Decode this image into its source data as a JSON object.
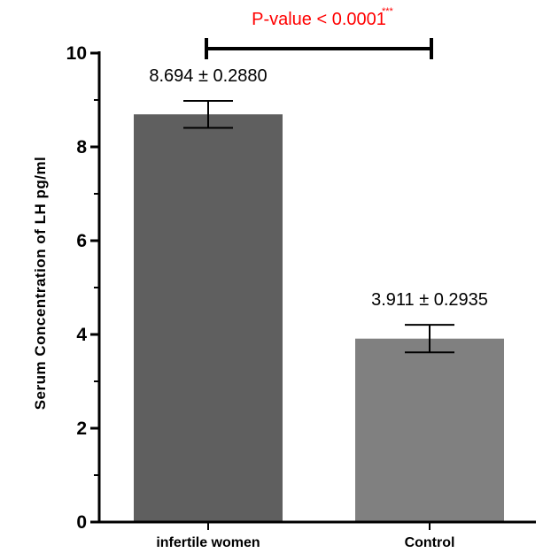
{
  "chart_data": {
    "type": "bar",
    "categories": [
      "infertile women",
      "Control"
    ],
    "values": [
      8.694,
      3.911
    ],
    "errors": [
      0.288,
      0.2935
    ],
    "data_labels": [
      "8.694 ± 0.2880",
      "3.911 ± 0.2935"
    ],
    "bar_colors": [
      "#5f5f5f",
      "#808080"
    ],
    "ylabel": "Serum Concentration of LH pg/ml",
    "xlabel": "",
    "ylim": [
      0,
      10
    ],
    "yticks": [
      "0",
      "2",
      "4",
      "6",
      "8",
      "10"
    ],
    "grid": false,
    "significance": {
      "text": "P-value < 0.0001",
      "stars": "***",
      "color": "#ff0000"
    }
  }
}
